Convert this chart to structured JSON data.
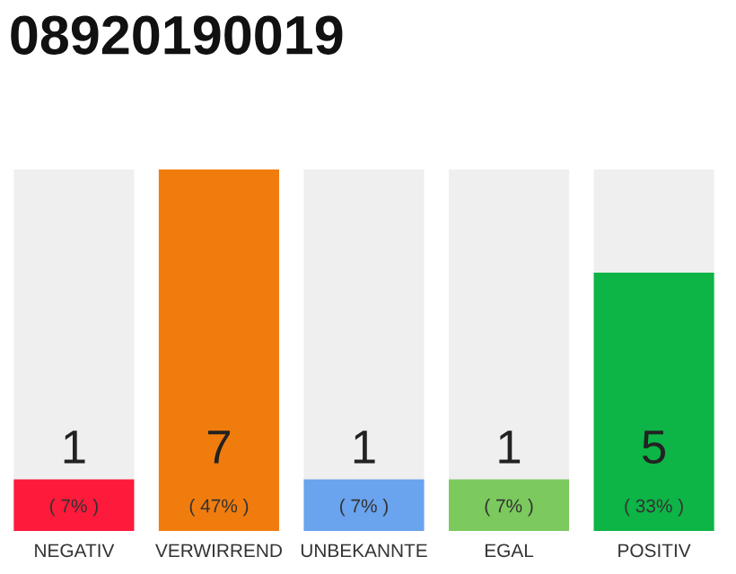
{
  "chart_data": {
    "type": "bar",
    "title": "08920190019",
    "categories": [
      "NEGATIV",
      "VERWIRREND",
      "UNBEKANNTE",
      "EGAL",
      "POSITIV"
    ],
    "values": [
      1,
      7,
      1,
      1,
      5
    ],
    "colors": [
      "#fe1a3a",
      "#f17c0e",
      "#6aa3ee",
      "#7cc95e",
      "#0db446"
    ],
    "ylim": [
      0,
      7
    ],
    "tick_labels": "x",
    "grid": false,
    "data_labels": true,
    "annotations": [
      "( 7% )",
      "( 47% )",
      "( 7% )",
      "( 7% )",
      "( 33% )"
    ]
  }
}
